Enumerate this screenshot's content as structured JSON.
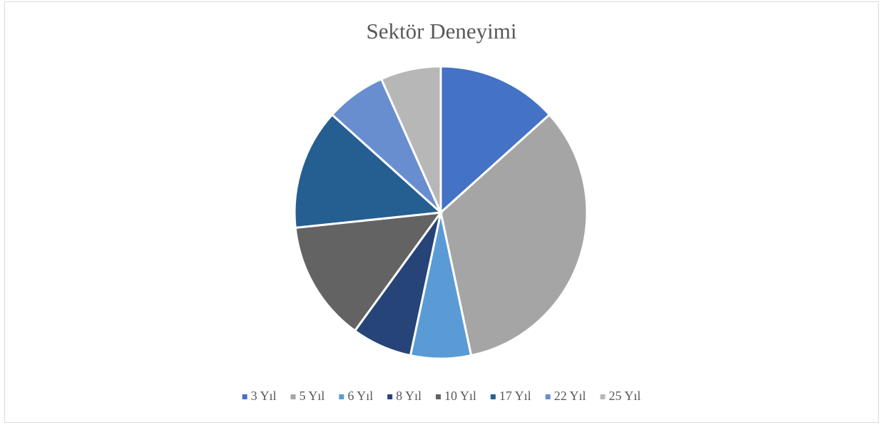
{
  "chart_data": {
    "type": "pie",
    "title": "Sektör Deneyimi",
    "categories": [
      "3 Yıl",
      "5 Yıl",
      "6 Yıl",
      "8 Yıl",
      "10 Yıl",
      "17 Yıl",
      "22 Yıl",
      "25 Yıl"
    ],
    "values": [
      2,
      5,
      1,
      1,
      2,
      2,
      1,
      1
    ],
    "colors": [
      "#4472c4",
      "#a5a5a5",
      "#5b9bd5",
      "#264478",
      "#636363",
      "#255e91",
      "#698ed0",
      "#b7b7b7"
    ],
    "legend": "bottom"
  }
}
